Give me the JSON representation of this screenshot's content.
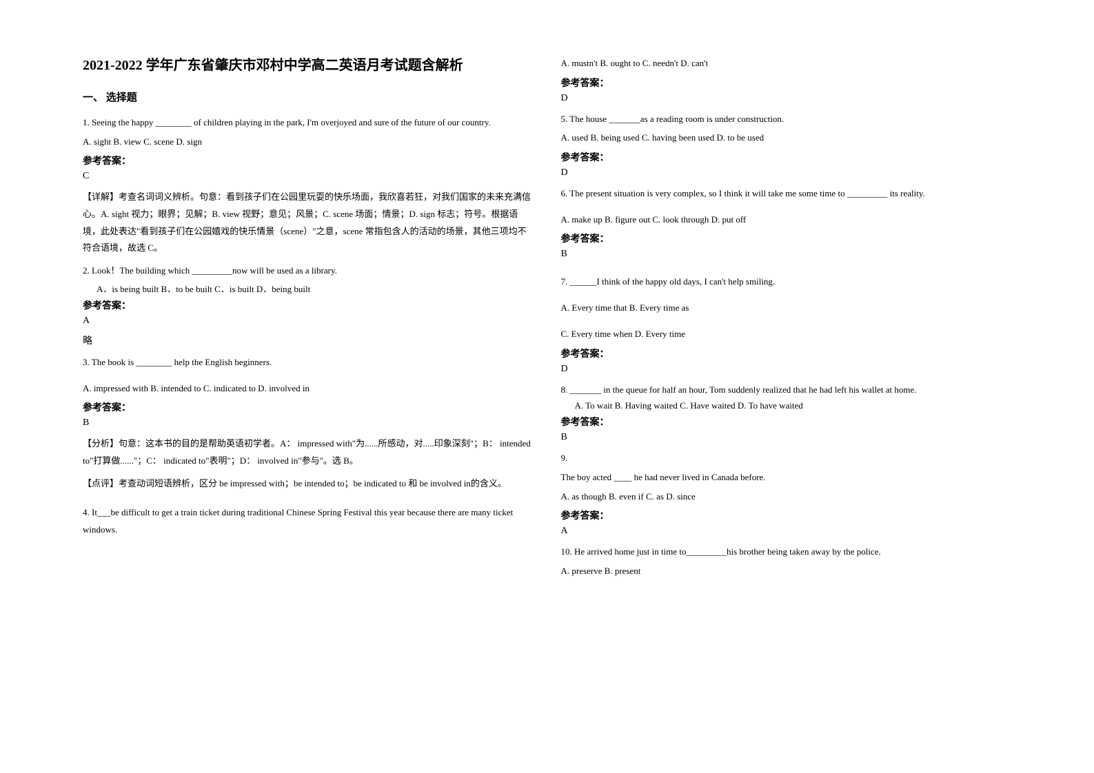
{
  "title": "2021-2022 学年广东省肇庆市邓村中学高二英语月考试题含解析",
  "section_heading": "一、 选择题",
  "answer_label": "参考答案：",
  "left_column": {
    "q1": {
      "text": "1. Seeing the happy ________ of children playing in the park, I'm overjoyed and sure of the future of our country.",
      "options": "A. sight B. view C. scene         D. sign",
      "answer": "C",
      "explanation": "【详解】考查名词词义辨析。句意：看到孩子们在公园里玩耍的快乐场面，我欣喜若狂，对我们国家的未来充满信心。A. sight 视力；眼界；见解；B. view 视野；意见；风景；C. scene 场面；情景；D. sign 标志；符号。根据语境，此处表达\"看到孩子们在公园嬉戏的快乐情景（scene）\"之意，scene 常指包含人的活动的场景，其他三项均不符合语境，故选 C。"
    },
    "q2": {
      "text": "2. Look！The building which _________now will be used as a library.",
      "options": "A．is being built          B．to be built              C．is built           D．being built",
      "answer": "A",
      "note": "略"
    },
    "q3": {
      "text": "3. The book is ________ help the English beginners.",
      "options": "A. impressed with             B. intended to             C. indicated to             D. involved in",
      "answer": "B",
      "explanation1": "【分析】句意：这本书的目的是帮助英语初学者。A： impressed with\"为......所感动，对.....印象深刻\"；B： intended to\"打算做......\"；C： indicated to\"表明\"；D： involved in\"参与\"。选 B。",
      "explanation2": "【点评】考查动词短语辨析，区分 be impressed with；be intended to；be indicated to 和 be involved in的含义。"
    },
    "q4": {
      "text": "4. It___be difficult to get a train ticket during traditional Chinese Spring Festival this year because there are many ticket windows."
    }
  },
  "right_column": {
    "q4_options": "A. mustn't      B. ought to      C. needn't      D. can't",
    "q4_answer": "D",
    "q5": {
      "text": "5. The house _______as a reading room is under construction.",
      "options": "A. used   B. being used   C. having been used   D. to be used",
      "answer": "D"
    },
    "q6": {
      "text": "6. The present situation is very complex, so I think it will take me some time to _________ its reality.",
      "options": "A. make up     B.  figure out      C. look through       D. put off",
      "answer": "B"
    },
    "q7": {
      "text": "7. ______I think of the happy old days, I can't help smiling.",
      "options_line1": "A. Every time that    B. Every time as",
      "options_line2": "C. Every time when   D. Every time",
      "answer": "D"
    },
    "q8": {
      "text": "8. _______ in the queue for half an hour, Tom suddenly realized that he had left his wallet at home.",
      "options": "A. To wait          B. Having waited     C. Have waited       D. To have waited",
      "answer": "B"
    },
    "q9": {
      "number": "9.",
      "text": "The boy acted ____ he had never lived in Canada before.",
      "options": "A. as though   B. even if    C. as    D. since",
      "answer": "A"
    },
    "q10": {
      "text": "10. He arrived home just in time to_________his brother being taken away by the police.",
      "options": "A. preserve       B. present"
    }
  }
}
